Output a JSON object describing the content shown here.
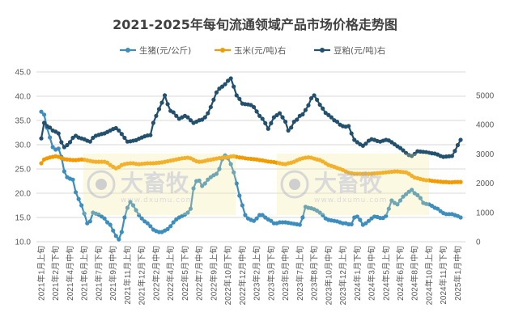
{
  "chart_data": {
    "type": "line",
    "title": "2021-2025年每旬流通领域产品市场价格走势图",
    "xlabel": "",
    "ylabel": "",
    "x_tick_labels": [
      "2021年1月上旬",
      "2021年2月下旬",
      "2021年4月中旬",
      "2021年6月上旬",
      "2021年7月下旬",
      "2021年9月中旬",
      "2021年11月上旬",
      "2021年12月下旬",
      "2022年2月中旬",
      "2022年4月上旬",
      "2022年5月下旬",
      "2022年7月中旬",
      "2022年9月上旬",
      "2022年10月下旬",
      "2022年12月中旬",
      "2023年2月上旬",
      "2023年3月下旬",
      "2023年5月中旬",
      "2023年7月上旬",
      "2023年8月下旬",
      "2023年10月中旬",
      "2023年12月上旬",
      "2024年1月下旬",
      "2024年3月中旬",
      "2024年5月上旬",
      "2024年6月下旬",
      "2024年8月中旬",
      "2024年10月上旬",
      "2024年11月下旬",
      "2025年1月中旬"
    ],
    "x_tick_every_n_points": 5,
    "left_axis": {
      "ylim": [
        10,
        45
      ],
      "ticks": [
        "10.0",
        "15.0",
        "20.0",
        "25.0",
        "30.0",
        "35.0",
        "40.0",
        "45.0"
      ]
    },
    "right_axis": {
      "ylim": [
        0,
        5800
      ],
      "ticks": [
        "0",
        "1000",
        "2000",
        "3000",
        "4000",
        "5000"
      ]
    },
    "grid": true,
    "legend_position": "top",
    "series": [
      {
        "name": "生猪(元/公斤)",
        "axis": "left",
        "color": "#3d8dbd",
        "values": [
          36.8,
          36.2,
          33.5,
          31.5,
          29.5,
          29,
          29.2,
          27.5,
          24.5,
          23.3,
          23,
          22.8,
          20.2,
          18.8,
          17.5,
          15.8,
          13.8,
          14.2,
          16,
          15.8,
          15.6,
          15.2,
          14.8,
          14,
          13.5,
          12.3,
          11.2,
          10.5,
          12,
          15,
          17,
          18.2,
          17.5,
          16.5,
          15.5,
          14.8,
          14.2,
          13.8,
          13.2,
          12.5,
          12.2,
          12,
          12,
          12.3,
          12.6,
          13.2,
          14,
          14.6,
          15,
          15.3,
          15.6,
          16,
          16.8,
          21,
          22.5,
          22.6,
          21.5,
          22,
          22.8,
          23.3,
          23.7,
          24,
          25,
          27,
          27.8,
          27.2,
          26,
          24.3,
          22,
          19.5,
          17.5,
          15.5,
          14.8,
          14.5,
          14.3,
          14.8,
          15.5,
          15.5,
          15,
          14.6,
          14.3,
          13.8,
          13.8,
          14,
          14,
          14,
          13.9,
          13.8,
          13.7,
          13.6,
          13.5,
          15,
          17.2,
          17,
          16.9,
          16.7,
          16.4,
          16,
          15.5,
          14.8,
          14.5,
          14.4,
          14.3,
          14.2,
          14,
          13.8,
          13.8,
          13.6,
          13.6,
          15,
          15.2,
          14.5,
          13.5,
          13.8,
          14.3,
          14.8,
          15.2,
          15.1,
          14.9,
          14.9,
          15.3,
          16.8,
          18.5,
          18,
          17.7,
          18.5,
          19.3,
          19.8,
          20.3,
          20.7,
          20,
          19.6,
          19,
          18,
          17.8,
          17.7,
          17.4,
          17,
          16.8,
          16.3,
          15.9,
          15.7,
          15.7,
          15.7,
          15.5,
          15.3,
          15
        ]
      },
      {
        "name": "玉米(元/吨)右",
        "axis": "right",
        "color": "#f29b00",
        "values": [
          2680,
          2810,
          2850,
          2880,
          2900,
          2920,
          2900,
          2860,
          2820,
          2810,
          2800,
          2790,
          2790,
          2800,
          2810,
          2800,
          2780,
          2760,
          2740,
          2730,
          2730,
          2730,
          2730,
          2700,
          2620,
          2560,
          2510,
          2550,
          2620,
          2650,
          2670,
          2680,
          2680,
          2660,
          2650,
          2660,
          2670,
          2680,
          2680,
          2680,
          2690,
          2700,
          2710,
          2730,
          2750,
          2770,
          2790,
          2810,
          2830,
          2850,
          2860,
          2870,
          2850,
          2800,
          2750,
          2730,
          2740,
          2760,
          2790,
          2800,
          2820,
          2840,
          2860,
          2870,
          2880,
          2890,
          2910,
          2920,
          2900,
          2880,
          2870,
          2850,
          2840,
          2830,
          2820,
          2810,
          2790,
          2780,
          2760,
          2740,
          2730,
          2720,
          2700,
          2680,
          2660,
          2650,
          2680,
          2700,
          2730,
          2780,
          2820,
          2850,
          2870,
          2880,
          2870,
          2840,
          2810,
          2790,
          2740,
          2680,
          2620,
          2590,
          2560,
          2520,
          2490,
          2450,
          2400,
          2360,
          2340,
          2320,
          2320,
          2320,
          2320,
          2320,
          2320,
          2320,
          2330,
          2340,
          2350,
          2360,
          2370,
          2380,
          2390,
          2400,
          2400,
          2390,
          2380,
          2370,
          2320,
          2250,
          2190,
          2170,
          2140,
          2120,
          2100,
          2100,
          2080,
          2070,
          2060,
          2050,
          2040,
          2040,
          2030,
          2030,
          2040,
          2040,
          2040
        ]
      },
      {
        "name": "豆粕(元/吨)右",
        "axis": "right",
        "color": "#23506d",
        "values": [
          3530,
          4060,
          3950,
          3900,
          3800,
          3760,
          3700,
          3400,
          3230,
          3300,
          3400,
          3550,
          3620,
          3560,
          3530,
          3500,
          3450,
          3420,
          3550,
          3620,
          3650,
          3680,
          3700,
          3750,
          3800,
          3850,
          3880,
          3800,
          3680,
          3550,
          3420,
          3430,
          3450,
          3470,
          3520,
          3560,
          3600,
          3630,
          3640,
          4060,
          4300,
          4530,
          4750,
          5000,
          4700,
          4470,
          4420,
          4300,
          4200,
          4250,
          4300,
          4250,
          4150,
          4060,
          4100,
          4150,
          4170,
          4250,
          4390,
          4600,
          4850,
          5100,
          5230,
          5300,
          5380,
          5500,
          5580,
          5300,
          5000,
          4880,
          4720,
          4700,
          4690,
          4670,
          4600,
          4450,
          4300,
          4200,
          4050,
          3860,
          4050,
          4250,
          4320,
          4390,
          4250,
          4100,
          3800,
          3900,
          4100,
          4170,
          4300,
          4350,
          4500,
          4660,
          4900,
          5000,
          4850,
          4680,
          4550,
          4400,
          4330,
          4250,
          4150,
          4100,
          4000,
          3950,
          3930,
          3950,
          3700,
          3480,
          3400,
          3330,
          3280,
          3350,
          3450,
          3500,
          3480,
          3440,
          3420,
          3450,
          3480,
          3460,
          3400,
          3330,
          3260,
          3200,
          3120,
          3030,
          2960,
          2930,
          3000,
          3090,
          3080,
          3070,
          3060,
          3040,
          3020,
          3010,
          2980,
          2930,
          2900,
          2910,
          2920,
          2930,
          3100,
          3300,
          3480
        ]
      }
    ]
  },
  "watermark": {
    "brand": "大畜牧",
    "url": "www.dxumu.com"
  }
}
